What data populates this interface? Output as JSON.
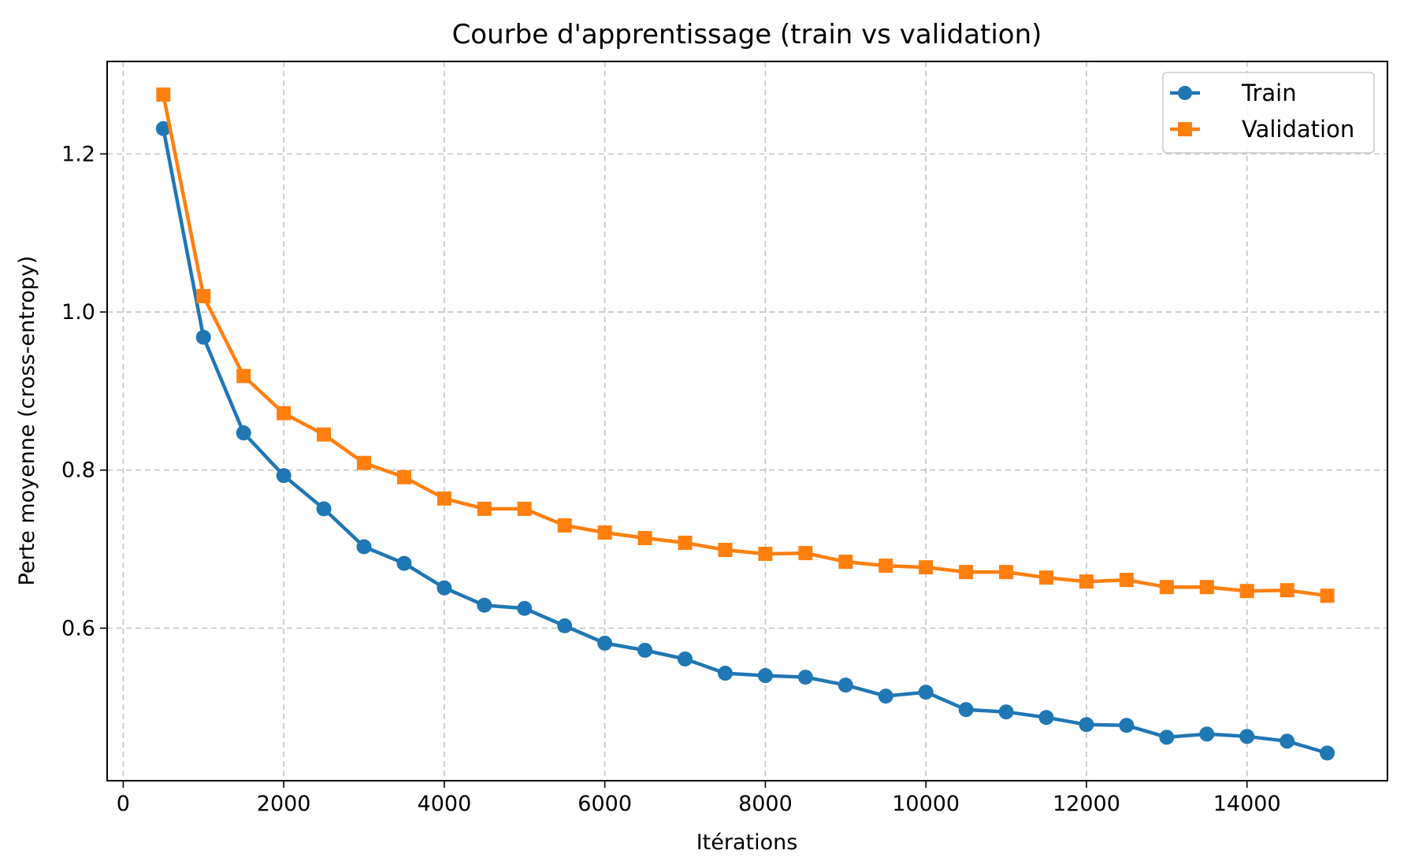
{
  "chart_data": {
    "type": "line",
    "title": "Courbe d'apprentissage (train vs validation)",
    "xlabel": "Itérations",
    "ylabel": "Perte moyenne (cross-entropy)",
    "xlim": [
      -200,
      15750
    ],
    "ylim": [
      0.407,
      1.317
    ],
    "xticks": [
      0,
      2000,
      4000,
      6000,
      8000,
      10000,
      12000,
      14000
    ],
    "xtick_labels": [
      "0",
      "2000",
      "4000",
      "6000",
      "8000",
      "10000",
      "12000",
      "14000"
    ],
    "yticks": [
      0.6,
      0.8,
      1.0,
      1.2
    ],
    "ytick_labels": [
      "0.6",
      "0.8",
      "1.0",
      "1.2"
    ],
    "grid": true,
    "legend_position": "top-right",
    "x": [
      500,
      1000,
      1500,
      2000,
      2500,
      3000,
      3500,
      4000,
      4500,
      5000,
      5500,
      6000,
      6500,
      7000,
      7500,
      8000,
      8500,
      9000,
      9500,
      10000,
      10500,
      11000,
      11500,
      12000,
      12500,
      13000,
      13500,
      14000,
      14500,
      15000
    ],
    "series": [
      {
        "name": "Train",
        "color": "#1f77b4",
        "marker": "circle",
        "values": [
          1.232,
          0.968,
          0.847,
          0.793,
          0.751,
          0.703,
          0.682,
          0.651,
          0.629,
          0.625,
          0.603,
          0.581,
          0.572,
          0.561,
          0.543,
          0.54,
          0.538,
          0.528,
          0.514,
          0.519,
          0.497,
          0.494,
          0.487,
          0.478,
          0.477,
          0.462,
          0.466,
          0.463,
          0.457,
          0.442
        ]
      },
      {
        "name": "Validation",
        "color": "#ff7f0e",
        "marker": "square",
        "values": [
          1.275,
          1.02,
          0.919,
          0.872,
          0.845,
          0.809,
          0.791,
          0.764,
          0.751,
          0.751,
          0.73,
          0.721,
          0.714,
          0.708,
          0.699,
          0.694,
          0.695,
          0.684,
          0.679,
          0.677,
          0.671,
          0.671,
          0.664,
          0.659,
          0.661,
          0.652,
          0.652,
          0.647,
          0.648,
          0.641
        ]
      }
    ]
  }
}
